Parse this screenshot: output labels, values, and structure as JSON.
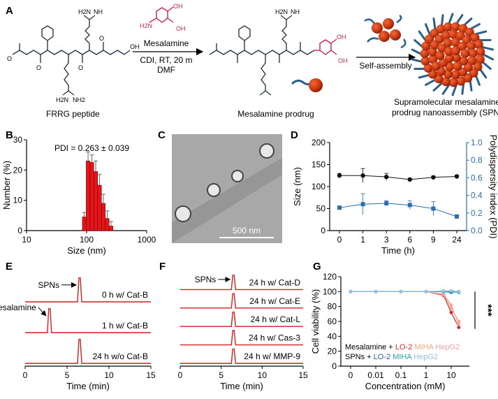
{
  "panelA": {
    "label": "A",
    "reagent_name": "Mesalamine",
    "conditions_1": "CDI, RT, 20 m",
    "conditions_2": "DMF",
    "left_caption": "FRRG peptide",
    "mid_caption": "Mesalamine prodrug",
    "self_assembly": "Self-assembly",
    "right_caption_1": "Supramolecular mesalamine",
    "right_caption_2": "prodrug nanoassembly (SPN)",
    "atoms": {
      "H2N": "H2N",
      "NH": "NH",
      "NH2": "NH2",
      "N": "N",
      "OH": "OH",
      "O": "O",
      "H": "H"
    }
  },
  "panelB": {
    "label": "B",
    "pdi_text": "PDI = 0.263 ± 0.039",
    "chart_data": {
      "type": "bar",
      "title": "",
      "xlabel": "Size (nm)",
      "ylabel": "Number (%)",
      "xscale": "log",
      "xlim": [
        10,
        1000
      ],
      "ylim": [
        0,
        30
      ],
      "xticks": [
        "10",
        "100",
        "1000"
      ],
      "yticks": [
        "0",
        "10",
        "20",
        "30"
      ],
      "bins": [
        {
          "size": 91.3,
          "value": 4.5,
          "err": 1.5
        },
        {
          "size": 105.7,
          "value": 23.0,
          "err": 3.0
        },
        {
          "size": 122.4,
          "value": 22.5,
          "err": 2.5
        },
        {
          "size": 141.8,
          "value": 19.5,
          "err": 3.5
        },
        {
          "size": 164.2,
          "value": 15.0,
          "err": 3.5
        },
        {
          "size": 190.1,
          "value": 9.0,
          "err": 3.0
        },
        {
          "size": 220.2,
          "value": 4.0,
          "err": 2.5
        },
        {
          "size": 255.0,
          "value": 1.5,
          "err": 1.5
        }
      ]
    }
  },
  "panelC": {
    "label": "C",
    "scale_bar": "500 nm"
  },
  "panelD": {
    "label": "D",
    "chart_data": {
      "type": "scatter",
      "xlabel": "Time (h)",
      "ylabel": "Size (nm)",
      "y2label": "Polydispersity index (PDI)",
      "categories": [
        "0",
        "1",
        "3",
        "6",
        "9",
        "24"
      ],
      "ylim": [
        0,
        200
      ],
      "y2lim": [
        0,
        1.0
      ],
      "yticks": [
        "0",
        "50",
        "100",
        "150",
        "200"
      ],
      "y2ticks": [
        "0.0",
        "0.2",
        "0.4",
        "0.6",
        "0.8",
        "1.0"
      ],
      "series": [
        {
          "name": "Size",
          "axis": "left",
          "color": "#111111",
          "values": [
            125,
            125,
            122,
            116,
            121,
            123
          ],
          "err": [
            5,
            16,
            8,
            3,
            3,
            3
          ]
        },
        {
          "name": "PDI",
          "axis": "right",
          "color": "#2a6fb0",
          "values": [
            0.26,
            0.3,
            0.31,
            0.29,
            0.25,
            0.16
          ],
          "err": [
            0.02,
            0.12,
            0.03,
            0.05,
            0.08,
            0.02
          ]
        }
      ]
    }
  },
  "panelE": {
    "label": "E",
    "arrow_sp": "SPNs",
    "arrow_mes": "Mesalamine",
    "chart_data": {
      "type": "line",
      "xlabel": "Time (min)",
      "xlim": [
        0,
        15
      ],
      "xticks": [
        "0",
        "5",
        "10",
        "15"
      ],
      "traces": [
        {
          "label": "0 h w/ Cat-B",
          "peak": 6.5
        },
        {
          "label": "1 h w/ Cat-B",
          "peak": 2.9
        },
        {
          "label": "24 h w/o Cat-B",
          "peak": 6.5
        }
      ]
    }
  },
  "panelF": {
    "label": "F",
    "arrow_sp": "SPNs",
    "chart_data": {
      "type": "line",
      "xlabel": "Time (min)",
      "xlim": [
        0,
        15
      ],
      "xticks": [
        "0",
        "5",
        "10",
        "15"
      ],
      "traces": [
        {
          "label": "24 h w/ Cat-D",
          "peak": 6.5
        },
        {
          "label": "24 h w/ Cat-E",
          "peak": 6.5
        },
        {
          "label": "24 h w/ Cat-L",
          "peak": 6.5
        },
        {
          "label": "24 h w/ Cas-3",
          "peak": 6.5
        },
        {
          "label": "24 h w/ MMP-9",
          "peak": 6.5
        }
      ]
    }
  },
  "panelG": {
    "label": "G",
    "stars": "***",
    "legend_line1": {
      "prefix": "Mesalamine +",
      "a": "LO-2",
      "b": "MIHA",
      "c": "HepG2"
    },
    "legend_line2": {
      "prefix": "SPNs +",
      "a": "LO-2",
      "b": "MIHA",
      "c": "HepG2"
    },
    "chart_data": {
      "type": "scatter",
      "xlabel": "Concentration (mM)",
      "ylabel": "Cell viability (%)",
      "xticks": [
        "0",
        "0.01",
        "0.1",
        "1",
        "10"
      ],
      "ylim": [
        0,
        120
      ],
      "yticks": [
        "0",
        "20",
        "40",
        "60",
        "80",
        "100",
        "120"
      ],
      "x": [
        0,
        0.01,
        0.1,
        1,
        5,
        10,
        20
      ],
      "series": [
        {
          "name": "Mesalamine + LO-2",
          "color": "#d9262b",
          "values": [
            100,
            100,
            100,
            100,
            95,
            72,
            52
          ]
        },
        {
          "name": "Mesalamine + MIHA",
          "color": "#f0a878",
          "values": [
            100,
            100,
            100,
            100,
            96,
            78,
            60
          ]
        },
        {
          "name": "Mesalamine + HepG2",
          "color": "#f4a6a6",
          "values": [
            100,
            100,
            100,
            100,
            97,
            82,
            56
          ]
        },
        {
          "name": "SPNs + LO-2",
          "color": "#2d5d9e",
          "values": [
            100,
            100,
            100,
            100,
            100,
            99,
            100
          ]
        },
        {
          "name": "SPNs + MIHA",
          "color": "#2fa3a8",
          "values": [
            100,
            100,
            100,
            100,
            100,
            100,
            99
          ]
        },
        {
          "name": "SPNs + HepG2",
          "color": "#8fc3e8",
          "values": [
            100,
            100,
            100,
            100,
            101,
            101,
            100
          ]
        }
      ]
    }
  }
}
